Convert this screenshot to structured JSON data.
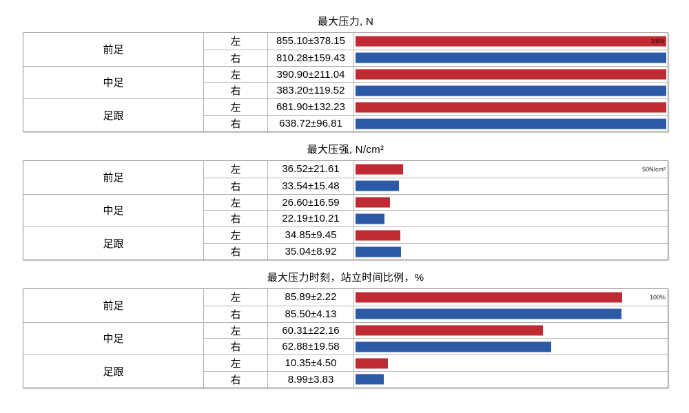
{
  "colors": {
    "left_bar": "#be2b33",
    "right_bar": "#2d5aa7",
    "inner_border": "#b3b3b3",
    "outer_border": "#8e8e8e",
    "scale_label_on_bar": "#4a0c10"
  },
  "tables": [
    {
      "title": "最大压力, N",
      "scale_label": "240N",
      "render_max": 240,
      "groups": [
        {
          "region": "前足",
          "rows": [
            {
              "side": "左",
              "value_text": "855.10±378.15",
              "mean": 855.1,
              "sd": 378.15
            },
            {
              "side": "右",
              "value_text": "810.28±159.43",
              "mean": 810.28,
              "sd": 159.43
            }
          ]
        },
        {
          "region": "中足",
          "rows": [
            {
              "side": "左",
              "value_text": "390.90±211.04",
              "mean": 390.9,
              "sd": 211.04
            },
            {
              "side": "右",
              "value_text": "383.20±119.52",
              "mean": 383.2,
              "sd": 119.52
            }
          ]
        },
        {
          "region": "足跟",
          "rows": [
            {
              "side": "左",
              "value_text": "681.90±132.23",
              "mean": 681.9,
              "sd": 132.23
            },
            {
              "side": "右",
              "value_text": "638.72±96.81",
              "mean": 638.72,
              "sd": 96.81
            }
          ]
        }
      ]
    },
    {
      "title": "最大压强, N/cm²",
      "scale_label": "50N/cm²",
      "render_max": 240,
      "groups": [
        {
          "region": "前足",
          "rows": [
            {
              "side": "左",
              "value_text": "36.52±21.61",
              "mean": 36.52,
              "sd": 21.61
            },
            {
              "side": "右",
              "value_text": "33.54±15.48",
              "mean": 33.54,
              "sd": 15.48
            }
          ]
        },
        {
          "region": "中足",
          "rows": [
            {
              "side": "左",
              "value_text": "26.60±16.59",
              "mean": 26.6,
              "sd": 16.59
            },
            {
              "side": "右",
              "value_text": "22.19±10.21",
              "mean": 22.19,
              "sd": 10.21
            }
          ]
        },
        {
          "region": "足跟",
          "rows": [
            {
              "side": "左",
              "value_text": "34.85±9.45",
              "mean": 34.85,
              "sd": 9.45
            },
            {
              "side": "右",
              "value_text": "35.04±8.92",
              "mean": 35.04,
              "sd": 8.92
            }
          ]
        }
      ]
    },
    {
      "title": "最大压力时刻，站立时间比例，%",
      "scale_label": "100%",
      "render_max": 100,
      "groups": [
        {
          "region": "前足",
          "rows": [
            {
              "side": "左",
              "value_text": "85.89±2.22",
              "mean": 85.89,
              "sd": 2.22
            },
            {
              "side": "右",
              "value_text": "85.50±4.13",
              "mean": 85.5,
              "sd": 4.13
            }
          ]
        },
        {
          "region": "中足",
          "rows": [
            {
              "side": "左",
              "value_text": "60.31±22.16",
              "mean": 60.31,
              "sd": 22.16
            },
            {
              "side": "右",
              "value_text": "62.88±19.58",
              "mean": 62.88,
              "sd": 19.58
            }
          ]
        },
        {
          "region": "足跟",
          "rows": [
            {
              "side": "左",
              "value_text": "10.35±4.50",
              "mean": 10.35,
              "sd": 4.5
            },
            {
              "side": "右",
              "value_text": "8.99±3.83",
              "mean": 8.99,
              "sd": 3.83
            }
          ]
        }
      ]
    }
  ],
  "chart_data": [
    {
      "type": "bar",
      "orientation": "horizontal",
      "title": "最大压力, N",
      "categories": [
        "前足-左",
        "前足-右",
        "中足-左",
        "中足-右",
        "足跟-左",
        "足跟-右"
      ],
      "values": [
        855.1,
        810.28,
        390.9,
        383.2,
        681.9,
        638.72
      ],
      "errors": [
        378.15,
        159.43,
        211.04,
        119.52,
        132.23,
        96.81
      ],
      "axis_max_label": "240N",
      "xlim": [
        0,
        240
      ],
      "bars_clipped_at_max": true,
      "bar_colors_by_side": {
        "左": "#be2b33",
        "右": "#2d5aa7"
      },
      "grid": false,
      "legend": "none"
    },
    {
      "type": "bar",
      "orientation": "horizontal",
      "title": "最大压强, N/cm²",
      "categories": [
        "前足-左",
        "前足-右",
        "中足-左",
        "中足-右",
        "足跟-左",
        "足跟-右"
      ],
      "values": [
        36.52,
        33.54,
        26.6,
        22.19,
        34.85,
        35.04
      ],
      "errors": [
        21.61,
        15.48,
        16.59,
        10.21,
        9.45,
        8.92
      ],
      "axis_max_label": "50N/cm²",
      "xlim_rendered": [
        0,
        240
      ],
      "bar_colors_by_side": {
        "左": "#be2b33",
        "右": "#2d5aa7"
      },
      "grid": false,
      "legend": "none"
    },
    {
      "type": "bar",
      "orientation": "horizontal",
      "title": "最大压力时刻，站立时间比例，%",
      "categories": [
        "前足-左",
        "前足-右",
        "中足-左",
        "中足-右",
        "足跟-左",
        "足跟-右"
      ],
      "values": [
        85.89,
        85.5,
        60.31,
        62.88,
        10.35,
        8.99
      ],
      "errors": [
        2.22,
        4.13,
        22.16,
        19.58,
        4.5,
        3.83
      ],
      "axis_max_label": "100%",
      "xlim": [
        0,
        100
      ],
      "bar_colors_by_side": {
        "左": "#be2b33",
        "右": "#2d5aa7"
      },
      "grid": false,
      "legend": "none"
    }
  ]
}
